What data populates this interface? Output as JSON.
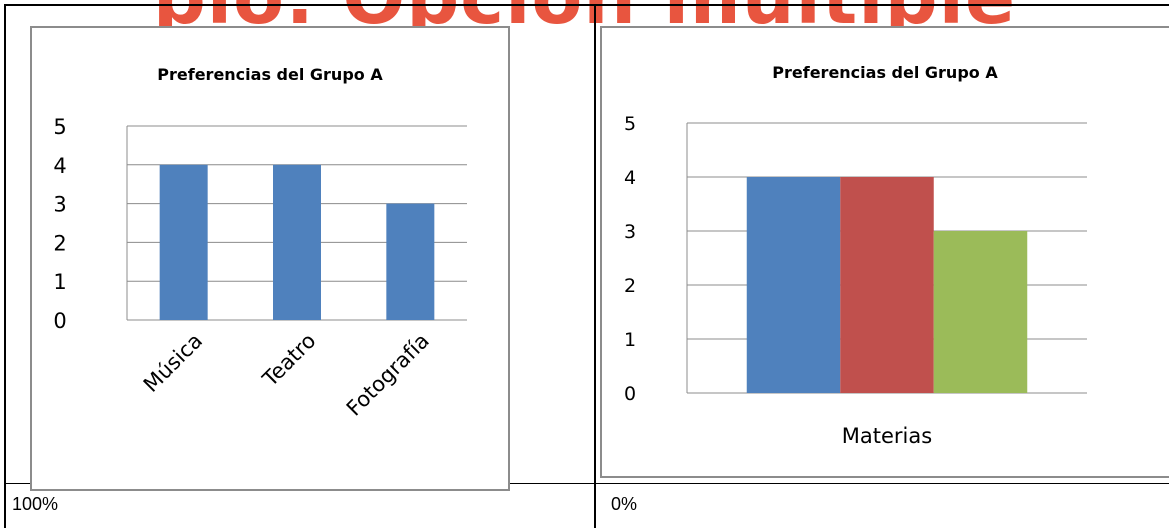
{
  "banner_text": "plo: Opción múltiple",
  "options": [
    {
      "percent": "100%"
    },
    {
      "percent": "0%"
    }
  ],
  "chart_data": [
    {
      "type": "bar",
      "title": "Preferencias del Grupo A",
      "categories": [
        "Música",
        "Teatro",
        "Fotografía"
      ],
      "values": [
        4,
        4,
        3
      ],
      "ylim": [
        0,
        5
      ],
      "yticks": [
        0,
        1,
        2,
        3,
        4,
        5
      ],
      "grid": true,
      "colors": [
        "#4f81bd"
      ]
    },
    {
      "type": "bar",
      "title": "Preferencias del Grupo A",
      "categories": [
        "Materias"
      ],
      "xlabel": "Materias",
      "series": [
        {
          "values": [
            4
          ],
          "color": "#4f81bd"
        },
        {
          "values": [
            4
          ],
          "color": "#c0504d"
        },
        {
          "values": [
            3
          ],
          "color": "#9bbb59"
        }
      ],
      "ylim": [
        0,
        5
      ],
      "yticks": [
        0,
        1,
        2,
        3,
        4,
        5
      ],
      "grid": true
    }
  ]
}
